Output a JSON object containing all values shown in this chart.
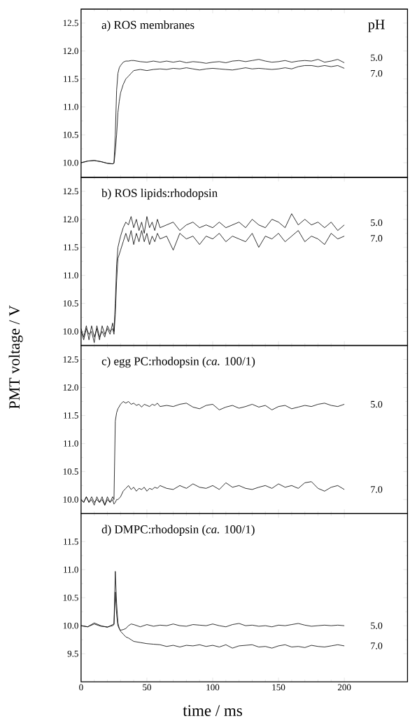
{
  "chart_data": [
    {
      "type": "line",
      "title": "a) ROS membranes",
      "legend_title": "pH",
      "xlim": [
        0,
        248
      ],
      "ylim": [
        9.74,
        12.75
      ],
      "xticks": [
        0,
        50,
        100,
        150,
        200
      ],
      "yticks": [
        {
          "value": 10,
          "label": "10.0"
        },
        10.5,
        {
          "value": 11,
          "label": "11.0"
        },
        11.5,
        {
          "value": 12,
          "label": "12.0"
        },
        12.5
      ],
      "tick_labels": "y",
      "series": [
        {
          "name": "5.0",
          "color": "#000000",
          "x": [
            0,
            5,
            10,
            15,
            20,
            24,
            25,
            26,
            27,
            28,
            29,
            30,
            32,
            34,
            36,
            38,
            40,
            45,
            50,
            55,
            60,
            65,
            70,
            75,
            80,
            85,
            90,
            95,
            100,
            105,
            110,
            115,
            120,
            125,
            130,
            135,
            140,
            145,
            150,
            155,
            160,
            165,
            170,
            175,
            180,
            185,
            190,
            195,
            200
          ],
          "values": [
            10.0,
            10.03,
            10.04,
            10.02,
            9.99,
            9.98,
            10.0,
            10.5,
            11.3,
            11.6,
            11.7,
            11.74,
            11.8,
            11.82,
            11.82,
            11.83,
            11.83,
            11.81,
            11.8,
            11.82,
            11.8,
            11.82,
            11.8,
            11.82,
            11.79,
            11.81,
            11.8,
            11.78,
            11.8,
            11.81,
            11.79,
            11.82,
            11.83,
            11.81,
            11.83,
            11.85,
            11.82,
            11.8,
            11.81,
            11.83,
            11.8,
            11.82,
            11.83,
            11.82,
            11.85,
            11.8,
            11.82,
            11.85,
            11.79
          ]
        },
        {
          "name": "7.0",
          "color": "#000000",
          "x": [
            0,
            5,
            10,
            15,
            20,
            24,
            25,
            26,
            27,
            28,
            29,
            30,
            32,
            34,
            36,
            38,
            40,
            45,
            50,
            55,
            60,
            65,
            70,
            75,
            80,
            85,
            90,
            95,
            100,
            105,
            110,
            115,
            120,
            125,
            130,
            135,
            140,
            145,
            150,
            155,
            160,
            165,
            170,
            175,
            180,
            185,
            190,
            195,
            200
          ],
          "values": [
            10.0,
            10.03,
            10.04,
            10.02,
            9.99,
            9.98,
            9.99,
            10.2,
            10.5,
            10.9,
            11.1,
            11.25,
            11.4,
            11.5,
            11.55,
            11.6,
            11.65,
            11.67,
            11.65,
            11.67,
            11.68,
            11.67,
            11.69,
            11.68,
            11.7,
            11.68,
            11.66,
            11.68,
            11.69,
            11.68,
            11.67,
            11.66,
            11.68,
            11.7,
            11.68,
            11.69,
            11.68,
            11.67,
            11.68,
            11.7,
            11.68,
            11.72,
            11.74,
            11.74,
            11.72,
            11.74,
            11.72,
            11.74,
            11.69
          ]
        }
      ]
    },
    {
      "type": "line",
      "title": "b) ROS lipids:rhodopsin",
      "ylabel": "PMT voltage / V",
      "xlim": [
        0,
        248
      ],
      "ylim": [
        9.75,
        12.75
      ],
      "xticks": [
        0,
        50,
        100,
        150,
        200
      ],
      "yticks": [
        {
          "value": 10,
          "label": "10.0"
        },
        10.5,
        {
          "value": 11,
          "label": "11.0"
        },
        11.5,
        {
          "value": 12,
          "label": "12.0"
        },
        12.5
      ],
      "tick_labels": "y",
      "series": [
        {
          "name": "5.0",
          "color": "#000000",
          "x": [
            0,
            2,
            4,
            6,
            8,
            10,
            12,
            14,
            16,
            18,
            20,
            22,
            24,
            25,
            26,
            27,
            28,
            30,
            32,
            34,
            36,
            38,
            40,
            42,
            44,
            46,
            48,
            50,
            52,
            54,
            56,
            58,
            60,
            65,
            70,
            75,
            80,
            85,
            90,
            95,
            100,
            105,
            110,
            115,
            120,
            125,
            130,
            135,
            140,
            145,
            150,
            155,
            160,
            165,
            170,
            175,
            180,
            185,
            190,
            195,
            200
          ],
          "values": [
            10.05,
            9.9,
            10.1,
            9.85,
            10.1,
            9.9,
            10.05,
            9.85,
            10.1,
            9.95,
            10.05,
            9.95,
            10.15,
            10.0,
            10.5,
            11.2,
            11.5,
            11.7,
            11.85,
            11.95,
            11.9,
            12.05,
            11.85,
            12.0,
            11.8,
            11.95,
            11.75,
            12.05,
            11.85,
            11.95,
            11.8,
            12.0,
            11.85,
            11.9,
            11.95,
            11.8,
            11.9,
            11.95,
            11.85,
            11.9,
            11.85,
            11.95,
            11.85,
            11.9,
            11.95,
            11.85,
            12.0,
            11.9,
            11.85,
            12.0,
            11.95,
            11.85,
            12.1,
            11.9,
            12.0,
            11.9,
            11.95,
            11.85,
            11.95,
            11.8,
            11.9
          ]
        },
        {
          "name": "7.0",
          "color": "#000000",
          "x": [
            0,
            2,
            4,
            6,
            8,
            10,
            12,
            14,
            16,
            18,
            20,
            22,
            24,
            25,
            26,
            27,
            28,
            30,
            32,
            34,
            36,
            38,
            40,
            42,
            44,
            46,
            48,
            50,
            52,
            54,
            56,
            58,
            60,
            65,
            70,
            75,
            80,
            85,
            90,
            95,
            100,
            105,
            110,
            115,
            120,
            125,
            130,
            135,
            140,
            145,
            150,
            155,
            160,
            165,
            170,
            175,
            180,
            185,
            190,
            195,
            200
          ],
          "values": [
            10.0,
            9.85,
            10.05,
            9.95,
            10.0,
            9.8,
            10.1,
            9.9,
            10.0,
            9.9,
            10.1,
            10.0,
            10.05,
            9.95,
            10.3,
            10.9,
            11.3,
            11.45,
            11.6,
            11.75,
            11.6,
            11.8,
            11.55,
            11.75,
            11.6,
            11.8,
            11.6,
            11.75,
            11.55,
            11.7,
            11.6,
            11.75,
            11.65,
            11.7,
            11.45,
            11.75,
            11.65,
            11.7,
            11.55,
            11.7,
            11.65,
            11.75,
            11.6,
            11.7,
            11.65,
            11.6,
            11.75,
            11.5,
            11.7,
            11.65,
            11.75,
            11.6,
            11.7,
            11.8,
            11.6,
            11.7,
            11.65,
            11.55,
            11.75,
            11.65,
            11.7
          ]
        }
      ]
    },
    {
      "type": "line",
      "title": "c) egg PC:rhodopsin (*ca.* 100/1)",
      "xlim": [
        0,
        248
      ],
      "ylim": [
        9.75,
        12.75
      ],
      "xticks": [
        0,
        50,
        100,
        150,
        200
      ],
      "yticks": [
        {
          "value": 10,
          "label": "10.0"
        },
        10.5,
        {
          "value": 11,
          "label": "11.0"
        },
        11.5,
        {
          "value": 12,
          "label": "12.0"
        },
        12.5
      ],
      "tick_labels": "y",
      "series": [
        {
          "name": "5.0",
          "color": "#000000",
          "x": [
            0,
            2,
            4,
            6,
            8,
            10,
            12,
            14,
            16,
            18,
            20,
            22,
            24,
            25,
            26,
            27,
            28,
            30,
            32,
            34,
            36,
            38,
            40,
            42,
            44,
            46,
            48,
            50,
            52,
            54,
            56,
            58,
            60,
            65,
            70,
            75,
            80,
            85,
            90,
            95,
            100,
            105,
            110,
            115,
            120,
            125,
            130,
            135,
            140,
            145,
            150,
            155,
            160,
            165,
            170,
            175,
            180,
            185,
            190,
            195,
            200
          ],
          "values": [
            10.0,
            9.95,
            10.05,
            9.95,
            10.0,
            9.9,
            10.05,
            9.95,
            10.0,
            9.9,
            10.05,
            9.95,
            10.05,
            10.0,
            11.4,
            11.55,
            11.62,
            11.7,
            11.75,
            11.72,
            11.75,
            11.7,
            11.72,
            11.68,
            11.7,
            11.65,
            11.7,
            11.68,
            11.66,
            11.7,
            11.68,
            11.72,
            11.66,
            11.68,
            11.66,
            11.7,
            11.72,
            11.65,
            11.62,
            11.68,
            11.7,
            11.6,
            11.65,
            11.68,
            11.63,
            11.66,
            11.7,
            11.65,
            11.68,
            11.6,
            11.66,
            11.68,
            11.62,
            11.65,
            11.68,
            11.66,
            11.7,
            11.72,
            11.68,
            11.66,
            11.7
          ]
        },
        {
          "name": "7.0",
          "color": "#000000",
          "x": [
            0,
            2,
            4,
            6,
            8,
            10,
            12,
            14,
            16,
            18,
            20,
            22,
            24,
            25,
            26,
            27,
            28,
            30,
            32,
            34,
            36,
            38,
            40,
            42,
            44,
            46,
            48,
            50,
            52,
            54,
            56,
            58,
            60,
            65,
            70,
            75,
            80,
            85,
            90,
            95,
            100,
            105,
            110,
            115,
            120,
            125,
            130,
            135,
            140,
            145,
            150,
            155,
            160,
            165,
            170,
            175,
            180,
            185,
            190,
            195,
            200
          ],
          "values": [
            10.0,
            9.95,
            10.05,
            9.95,
            10.05,
            9.95,
            10.0,
            9.95,
            10.05,
            9.9,
            10.0,
            9.95,
            10.0,
            9.92,
            9.95,
            10.0,
            10.0,
            10.05,
            10.15,
            10.2,
            10.25,
            10.18,
            10.22,
            10.15,
            10.2,
            10.18,
            10.22,
            10.15,
            10.2,
            10.18,
            10.22,
            10.2,
            10.25,
            10.2,
            10.18,
            10.25,
            10.2,
            10.28,
            10.22,
            10.2,
            10.25,
            10.18,
            10.3,
            10.22,
            10.25,
            10.2,
            10.18,
            10.22,
            10.25,
            10.2,
            10.28,
            10.22,
            10.25,
            10.2,
            10.3,
            10.32,
            10.2,
            10.15,
            10.22,
            10.25,
            10.18
          ]
        }
      ]
    },
    {
      "type": "line",
      "title": "d) DMPC:rhodopsin (*ca.* 100/1)",
      "xlabel": "time / ms",
      "xlim": [
        0,
        248
      ],
      "ylim": [
        9.0,
        12.0
      ],
      "xticks": [
        0,
        50,
        100,
        150,
        200
      ],
      "yticks": [
        9.5,
        {
          "value": 10,
          "label": "10.0"
        },
        10.5,
        {
          "value": 11,
          "label": "11.0"
        },
        11.5
      ],
      "series": [
        {
          "name": "5.0",
          "color": "#000000",
          "x": [
            0,
            5,
            10,
            15,
            20,
            24,
            25,
            26,
            27,
            28,
            29,
            30,
            32,
            34,
            36,
            38,
            40,
            45,
            50,
            55,
            60,
            65,
            70,
            75,
            80,
            85,
            90,
            95,
            100,
            105,
            110,
            115,
            120,
            125,
            130,
            135,
            140,
            145,
            150,
            155,
            160,
            165,
            170,
            175,
            180,
            185,
            190,
            195,
            200
          ],
          "values": [
            10.0,
            9.98,
            10.05,
            10.0,
            9.97,
            10.02,
            10.03,
            10.6,
            10.2,
            10.0,
            9.95,
            9.92,
            9.93,
            9.95,
            10.0,
            10.03,
            10.02,
            9.98,
            10.02,
            9.99,
            10.01,
            10.0,
            10.03,
            10.0,
            9.99,
            10.02,
            10.01,
            10.0,
            10.03,
            10.0,
            9.98,
            10.02,
            10.04,
            10.0,
            10.01,
            9.99,
            10.0,
            9.98,
            10.01,
            10.0,
            10.02,
            10.04,
            10.01,
            9.99,
            10.0,
            10.01,
            10.0,
            10.01,
            10.0
          ]
        },
        {
          "name": "7.0",
          "color": "#000000",
          "x": [
            0,
            5,
            10,
            15,
            20,
            24,
            25,
            26,
            27,
            28,
            29,
            30,
            32,
            34,
            36,
            38,
            40,
            45,
            50,
            55,
            60,
            65,
            70,
            75,
            80,
            85,
            90,
            95,
            100,
            105,
            110,
            115,
            120,
            125,
            130,
            135,
            140,
            145,
            150,
            155,
            160,
            165,
            170,
            175,
            180,
            185,
            190,
            195,
            200
          ],
          "values": [
            10.0,
            9.98,
            10.03,
            9.99,
            9.98,
            10.0,
            10.02,
            10.97,
            10.4,
            10.05,
            9.95,
            9.9,
            9.85,
            9.8,
            9.78,
            9.75,
            9.72,
            9.7,
            9.68,
            9.67,
            9.66,
            9.63,
            9.65,
            9.62,
            9.65,
            9.64,
            9.66,
            9.63,
            9.65,
            9.62,
            9.66,
            9.6,
            9.64,
            9.65,
            9.66,
            9.62,
            9.63,
            9.6,
            9.64,
            9.66,
            9.62,
            9.63,
            9.61,
            9.65,
            9.63,
            9.62,
            9.64,
            9.66,
            9.64
          ]
        }
      ]
    }
  ]
}
